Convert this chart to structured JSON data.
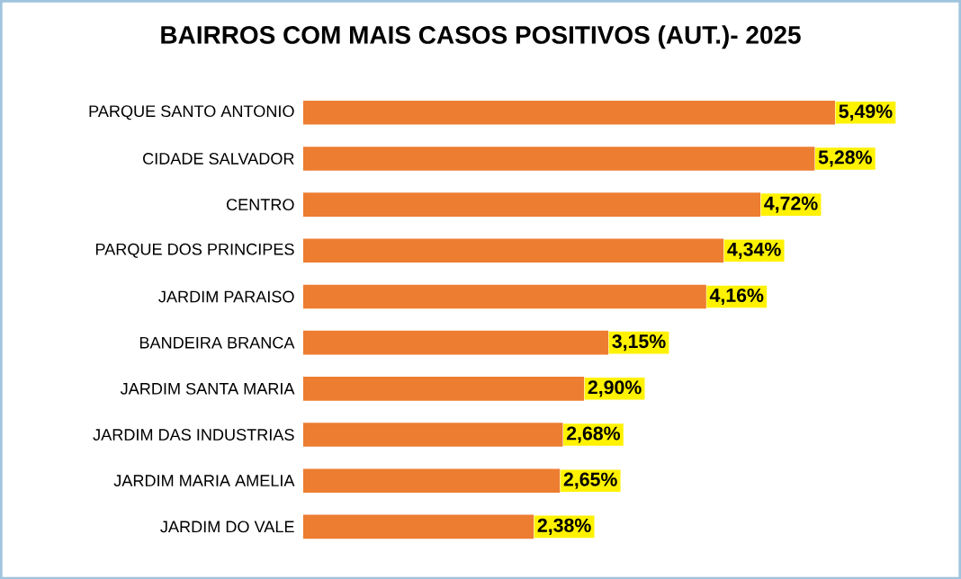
{
  "chart_data": {
    "type": "bar",
    "orientation": "horizontal",
    "title": "BAIRROS COM MAIS CASOS POSITIVOS (AUT.)- 2025",
    "categories": [
      "PARQUE SANTO ANTONIO",
      "CIDADE SALVADOR",
      "CENTRO",
      "PARQUE DOS PRINCIPES",
      "JARDIM PARAISO",
      "BANDEIRA BRANCA",
      "JARDIM SANTA MARIA",
      "JARDIM DAS INDUSTRIAS",
      "JARDIM MARIA AMELIA",
      "JARDIM DO VALE"
    ],
    "values": [
      5.49,
      5.28,
      4.72,
      4.34,
      4.16,
      3.15,
      2.9,
      2.68,
      2.65,
      2.38
    ],
    "value_labels": [
      "5,49%",
      "5,28%",
      "4,72%",
      "4,34%",
      "4,16%",
      "3,15%",
      "2,90%",
      "2,68%",
      "2,65%",
      "2,38%"
    ],
    "color": "#ed7d31"
  }
}
